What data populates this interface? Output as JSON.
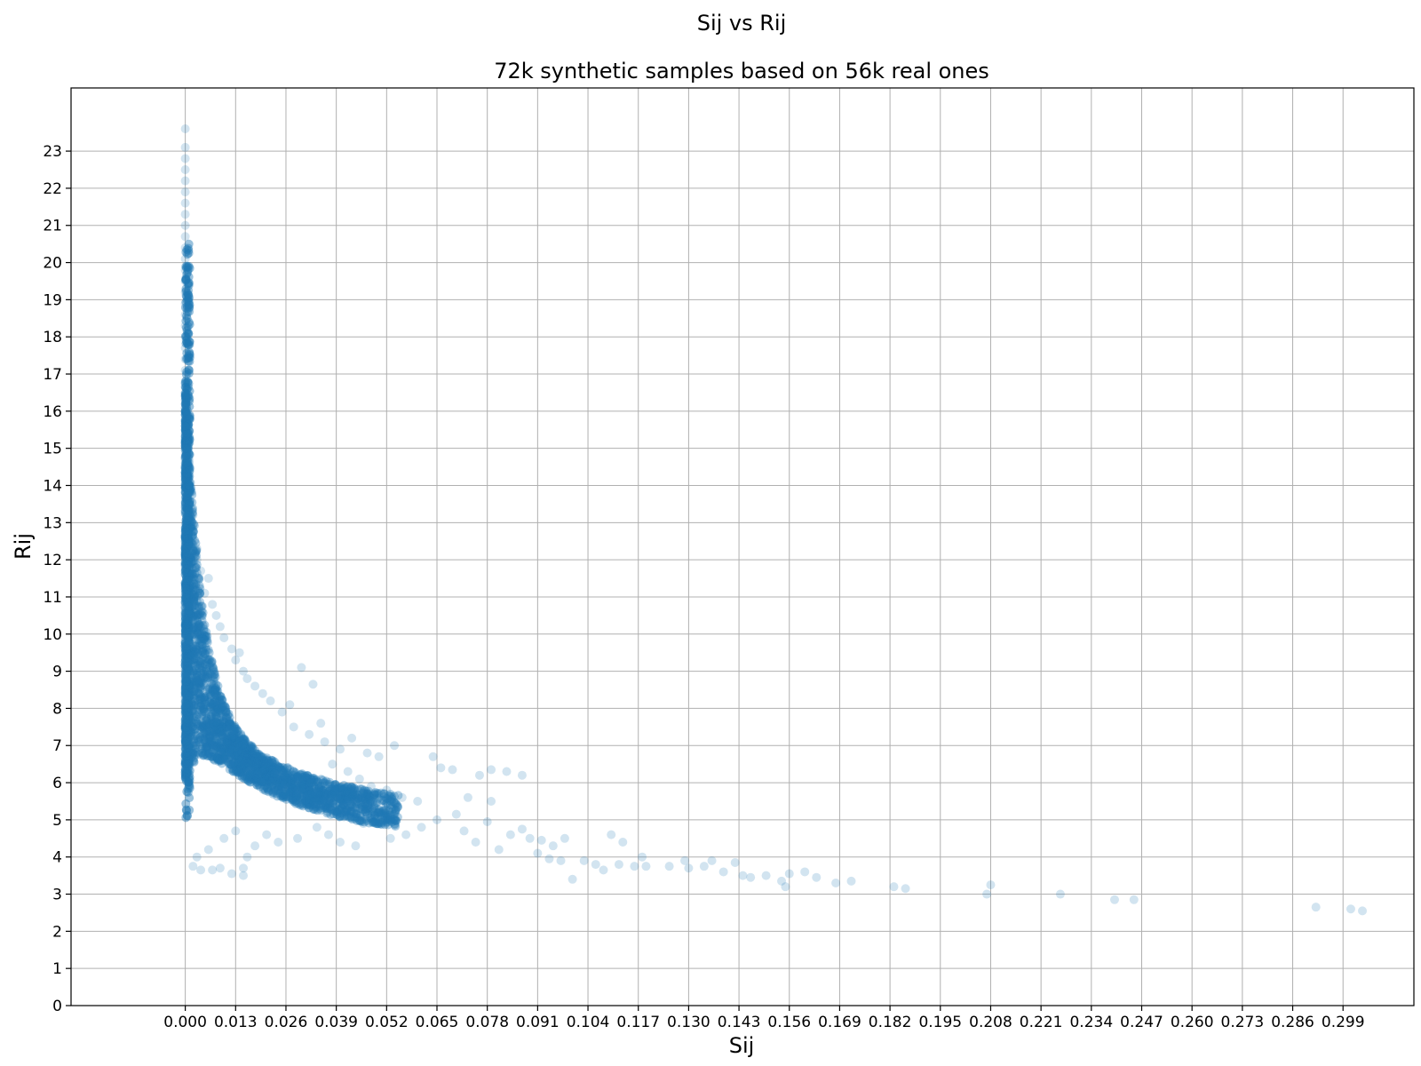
{
  "chart_data": {
    "type": "scatter",
    "suptitle": "Sij vs Rij",
    "title": "72k synthetic samples based on 56k real ones",
    "xlabel": "Sij",
    "ylabel": "Rij",
    "xlim": [
      -0.0295,
      0.3173
    ],
    "ylim": [
      0,
      24.7
    ],
    "xticks": [
      "0.000",
      "0.013",
      "0.026",
      "0.039",
      "0.052",
      "0.065",
      "0.078",
      "0.091",
      "0.104",
      "0.117",
      "0.130",
      "0.143",
      "0.156",
      "0.169",
      "0.182",
      "0.195",
      "0.208",
      "0.221",
      "0.234",
      "0.247",
      "0.260",
      "0.273",
      "0.286",
      "0.299"
    ],
    "yticks": [
      "0",
      "1",
      "2",
      "3",
      "4",
      "5",
      "6",
      "7",
      "8",
      "9",
      "10",
      "11",
      "12",
      "13",
      "14",
      "15",
      "16",
      "17",
      "18",
      "19",
      "20",
      "21",
      "22",
      "23"
    ],
    "grid": true,
    "point_color": "#1f77b4",
    "point_alpha": 0.1,
    "points": [
      [
        0.0,
        23.6
      ],
      [
        0.0,
        23.1
      ],
      [
        0.0,
        22.8
      ],
      [
        0.0,
        22.5
      ],
      [
        0.0,
        22.2
      ],
      [
        0.0,
        21.9
      ],
      [
        0.0,
        21.6
      ],
      [
        0.0,
        21.3
      ],
      [
        0.0,
        21.0
      ],
      [
        0.0,
        20.7
      ],
      [
        0.0,
        20.4
      ],
      [
        0.0,
        20.1
      ],
      [
        0.0,
        19.8
      ],
      [
        0.0,
        19.5
      ],
      [
        0.0,
        19.2
      ],
      [
        0.0,
        18.9
      ],
      [
        0.0,
        18.6
      ],
      [
        0.0,
        18.3
      ],
      [
        0.0,
        18.0
      ],
      [
        0.0,
        17.7
      ],
      [
        0.0,
        17.4
      ],
      [
        0.0,
        17.1
      ],
      [
        0.0,
        16.8
      ],
      [
        0.0,
        16.5
      ],
      [
        0.0,
        16.2
      ],
      [
        0.0,
        15.9
      ],
      [
        0.0,
        15.6
      ],
      [
        0.0,
        15.3
      ],
      [
        0.0,
        15.0
      ],
      [
        0.001,
        14.7
      ],
      [
        0.001,
        14.4
      ],
      [
        0.001,
        14.1
      ],
      [
        0.001,
        13.8
      ],
      [
        0.001,
        13.5
      ],
      [
        0.002,
        13.2
      ],
      [
        0.002,
        12.9
      ],
      [
        0.002,
        12.6
      ],
      [
        0.003,
        12.3
      ],
      [
        0.003,
        12.0
      ],
      [
        0.004,
        11.7
      ],
      [
        0.006,
        11.5
      ],
      [
        0.005,
        11.1
      ],
      [
        0.007,
        10.8
      ],
      [
        0.008,
        10.5
      ],
      [
        0.009,
        10.2
      ],
      [
        0.01,
        9.9
      ],
      [
        0.012,
        9.6
      ],
      [
        0.014,
        9.5
      ],
      [
        0.013,
        9.3
      ],
      [
        0.015,
        9.0
      ],
      [
        0.016,
        8.8
      ],
      [
        0.018,
        8.6
      ],
      [
        0.02,
        8.4
      ],
      [
        0.022,
        8.2
      ],
      [
        0.027,
        8.1
      ],
      [
        0.03,
        9.1
      ],
      [
        0.033,
        8.65
      ],
      [
        0.035,
        7.6
      ],
      [
        0.025,
        7.9
      ],
      [
        0.028,
        7.5
      ],
      [
        0.032,
        7.3
      ],
      [
        0.036,
        7.1
      ],
      [
        0.04,
        6.9
      ],
      [
        0.043,
        7.2
      ],
      [
        0.047,
        6.8
      ],
      [
        0.05,
        6.7
      ],
      [
        0.054,
        7.0
      ],
      [
        0.038,
        6.5
      ],
      [
        0.042,
        6.3
      ],
      [
        0.045,
        6.1
      ],
      [
        0.048,
        5.9
      ],
      [
        0.052,
        5.8
      ],
      [
        0.056,
        5.6
      ],
      [
        0.06,
        5.5
      ],
      [
        0.064,
        6.7
      ],
      [
        0.066,
        6.4
      ],
      [
        0.069,
        6.35
      ],
      [
        0.076,
        6.2
      ],
      [
        0.079,
        6.35
      ],
      [
        0.083,
        6.3
      ],
      [
        0.087,
        6.2
      ],
      [
        0.079,
        5.5
      ],
      [
        0.073,
        5.6
      ],
      [
        0.07,
        5.15
      ],
      [
        0.065,
        5.0
      ],
      [
        0.061,
        4.8
      ],
      [
        0.057,
        4.6
      ],
      [
        0.053,
        4.5
      ],
      [
        0.046,
        4.9
      ],
      [
        0.044,
        4.3
      ],
      [
        0.04,
        4.4
      ],
      [
        0.037,
        4.6
      ],
      [
        0.034,
        4.8
      ],
      [
        0.029,
        4.5
      ],
      [
        0.024,
        4.4
      ],
      [
        0.021,
        4.6
      ],
      [
        0.018,
        4.3
      ],
      [
        0.016,
        4.0
      ],
      [
        0.015,
        3.7
      ],
      [
        0.015,
        3.5
      ],
      [
        0.012,
        3.55
      ],
      [
        0.009,
        3.7
      ],
      [
        0.007,
        3.65
      ],
      [
        0.004,
        3.65
      ],
      [
        0.002,
        3.75
      ],
      [
        0.003,
        4.0
      ],
      [
        0.006,
        4.2
      ],
      [
        0.01,
        4.5
      ],
      [
        0.013,
        4.7
      ],
      [
        0.072,
        4.7
      ],
      [
        0.075,
        4.4
      ],
      [
        0.078,
        4.95
      ],
      [
        0.081,
        4.2
      ],
      [
        0.084,
        4.6
      ],
      [
        0.087,
        4.75
      ],
      [
        0.089,
        4.5
      ],
      [
        0.092,
        4.45
      ],
      [
        0.095,
        4.3
      ],
      [
        0.098,
        4.5
      ],
      [
        0.091,
        4.1
      ],
      [
        0.094,
        3.95
      ],
      [
        0.097,
        3.9
      ],
      [
        0.1,
        3.4
      ],
      [
        0.103,
        3.9
      ],
      [
        0.106,
        3.8
      ],
      [
        0.108,
        3.65
      ],
      [
        0.11,
        4.6
      ],
      [
        0.113,
        4.4
      ],
      [
        0.112,
        3.8
      ],
      [
        0.116,
        3.75
      ],
      [
        0.118,
        4.0
      ],
      [
        0.119,
        3.75
      ],
      [
        0.125,
        3.75
      ],
      [
        0.129,
        3.9
      ],
      [
        0.13,
        3.7
      ],
      [
        0.134,
        3.75
      ],
      [
        0.136,
        3.9
      ],
      [
        0.139,
        3.6
      ],
      [
        0.142,
        3.85
      ],
      [
        0.144,
        3.5
      ],
      [
        0.146,
        3.45
      ],
      [
        0.15,
        3.5
      ],
      [
        0.154,
        3.35
      ],
      [
        0.155,
        3.2
      ],
      [
        0.156,
        3.55
      ],
      [
        0.16,
        3.6
      ],
      [
        0.163,
        3.45
      ],
      [
        0.168,
        3.3
      ],
      [
        0.172,
        3.35
      ],
      [
        0.183,
        3.2
      ],
      [
        0.186,
        3.15
      ],
      [
        0.207,
        3.0
      ],
      [
        0.208,
        3.25
      ],
      [
        0.226,
        3.0
      ],
      [
        0.24,
        2.85
      ],
      [
        0.245,
        2.85
      ],
      [
        0.292,
        2.65
      ],
      [
        0.301,
        2.6
      ],
      [
        0.304,
        2.55
      ]
    ]
  }
}
